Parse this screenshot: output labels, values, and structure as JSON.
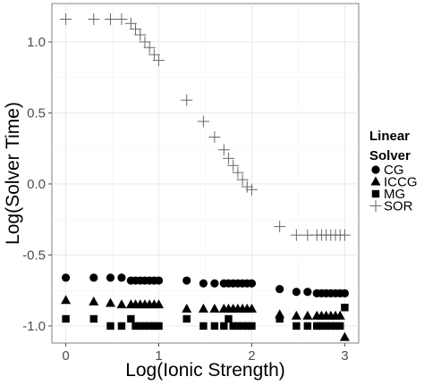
{
  "chart_data": {
    "type": "scatter",
    "xlabel": "Log(Ionic Strength)",
    "ylabel": "Log(Solver Time)",
    "xlim": [
      -0.15,
      3.15
    ],
    "ylim": [
      -1.12,
      1.27
    ],
    "x_ticks": [
      0,
      1,
      2,
      3
    ],
    "y_ticks": [
      -1.0,
      -0.5,
      0.0,
      0.5,
      1.0
    ],
    "x_tick_labels": [
      "0",
      "1",
      "2",
      "3"
    ],
    "y_tick_labels": [
      "-1.0",
      "-0.5",
      "0.0",
      "0.5",
      "1.0"
    ],
    "grid": true,
    "legend": {
      "title_line1": "Linear",
      "title_line2": "Solver",
      "position": "right"
    },
    "x": [
      0,
      0.3,
      0.48,
      0.6,
      0.7,
      0.75,
      0.8,
      0.85,
      0.9,
      0.95,
      1.0,
      1.3,
      1.48,
      1.6,
      1.7,
      1.75,
      1.8,
      1.85,
      1.9,
      1.95,
      2.0,
      2.3,
      2.48,
      2.6,
      2.7,
      2.75,
      2.8,
      2.85,
      2.9,
      2.95,
      3.0
    ],
    "series": [
      {
        "name": "CG",
        "marker": "circle",
        "values": [
          -0.66,
          -0.66,
          -0.66,
          -0.66,
          -0.68,
          -0.68,
          -0.68,
          -0.68,
          -0.68,
          -0.68,
          -0.68,
          -0.68,
          -0.7,
          -0.7,
          -0.7,
          -0.7,
          -0.7,
          -0.7,
          -0.7,
          -0.7,
          -0.7,
          -0.74,
          -0.76,
          -0.76,
          -0.77,
          -0.77,
          -0.77,
          -0.77,
          -0.77,
          -0.77,
          -0.77
        ]
      },
      {
        "name": "ICCG",
        "marker": "triangle",
        "values": [
          -0.82,
          -0.83,
          -0.84,
          -0.85,
          -0.85,
          -0.85,
          -0.85,
          -0.85,
          -0.85,
          -0.85,
          -0.85,
          -0.88,
          -0.88,
          -0.88,
          -0.88,
          -0.88,
          -0.88,
          -0.88,
          -0.88,
          -0.88,
          -0.88,
          -0.92,
          -0.93,
          -0.93,
          -0.93,
          -0.93,
          -0.93,
          -0.93,
          -0.93,
          -0.93,
          -1.08
        ]
      },
      {
        "name": "MG",
        "marker": "square",
        "values": [
          -0.95,
          -0.95,
          -1.0,
          -1.0,
          -0.95,
          -1.0,
          -1.0,
          -1.0,
          -1.0,
          -1.0,
          -1.0,
          -0.95,
          -1.0,
          -1.0,
          -1.0,
          -0.95,
          -1.0,
          -1.0,
          -1.0,
          -1.0,
          -1.0,
          -0.95,
          -1.0,
          -1.0,
          -1.0,
          -1.0,
          -1.0,
          -1.0,
          -1.0,
          -1.0,
          -0.87
        ]
      },
      {
        "name": "SOR",
        "marker": "cross",
        "values": [
          1.16,
          1.16,
          1.16,
          1.16,
          1.13,
          1.09,
          1.05,
          1.0,
          0.96,
          0.91,
          0.87,
          0.59,
          0.44,
          0.33,
          0.24,
          0.18,
          0.13,
          0.08,
          0.03,
          -0.02,
          -0.04,
          -0.3,
          -0.36,
          -0.36,
          -0.36,
          -0.36,
          -0.36,
          -0.36,
          -0.36,
          -0.36,
          -0.36
        ]
      }
    ]
  }
}
